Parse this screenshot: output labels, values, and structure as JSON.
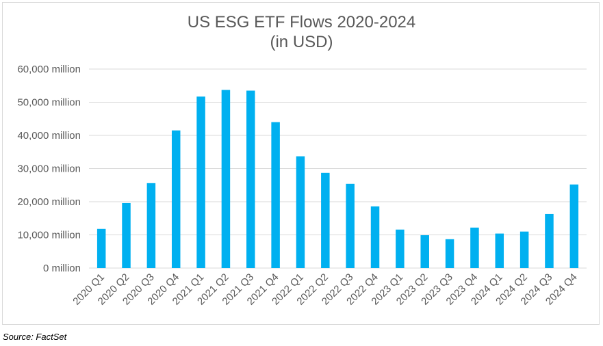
{
  "chart_data": {
    "type": "bar",
    "title": "US ESG ETF Flows 2020-2024",
    "subtitle": "(in USD)",
    "categories": [
      "2020 Q1",
      "2020 Q2",
      "2020 Q3",
      "2020 Q4",
      "2021 Q1",
      "2021 Q2",
      "2021 Q3",
      "2021 Q4",
      "2022 Q1",
      "2022 Q2",
      "2022 Q3",
      "2022 Q4",
      "2023 Q1",
      "2023 Q2",
      "2023 Q3",
      "2023 Q4",
      "2024 Q1",
      "2024 Q2",
      "2024 Q3",
      "2024 Q4"
    ],
    "values": [
      11800,
      19600,
      25600,
      41500,
      51700,
      53700,
      53500,
      44000,
      33700,
      28700,
      25400,
      18600,
      11600,
      9900,
      8700,
      12200,
      10400,
      11000,
      16300,
      25200
    ],
    "ylim": [
      0,
      60000
    ],
    "yticks": [
      0,
      10000,
      20000,
      30000,
      40000,
      50000,
      60000
    ],
    "ytick_labels": [
      "0 million",
      "10,000 million",
      "20,000 million",
      "30,000 million",
      "40,000 million",
      "50,000 million",
      "60,000 million"
    ],
    "xlabel": "",
    "ylabel": "",
    "grid": true,
    "legend": "none",
    "bar_color": "#00b0f0"
  },
  "source": "Source: FactSet"
}
